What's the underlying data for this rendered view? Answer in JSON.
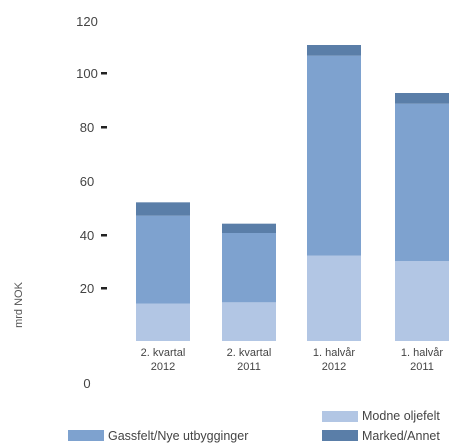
{
  "chart_data": {
    "type": "bar",
    "stacked": true,
    "ylabel": "mrd NOK",
    "ylim": [
      0,
      120
    ],
    "yticks": [
      120,
      100,
      80,
      60,
      40,
      20,
      0
    ],
    "categories": [
      "2. kvartal 2012",
      "2. kvartal 2011",
      "1. halvår 2012",
      "1. halvår 2011"
    ],
    "category_lines": [
      [
        "2. kvartal",
        "2012"
      ],
      [
        "2. kvartal",
        "2011"
      ],
      [
        "1. halvår",
        "2012"
      ],
      [
        "1. halvår",
        "2011"
      ]
    ],
    "series": [
      {
        "name": "Modne oljefelt",
        "color": "#b2c6e4",
        "values": [
          14,
          14.5,
          32,
          30
        ]
      },
      {
        "name": "Gassfelt/Nye utbygginger",
        "color": "#7ea2cf",
        "values": [
          33,
          26,
          75,
          59
        ]
      },
      {
        "name": "Marked/Annet",
        "color": "#5a7ea8",
        "values": [
          5,
          3.5,
          4,
          4
        ]
      }
    ],
    "grid": false,
    "legend_position": "bottom"
  }
}
